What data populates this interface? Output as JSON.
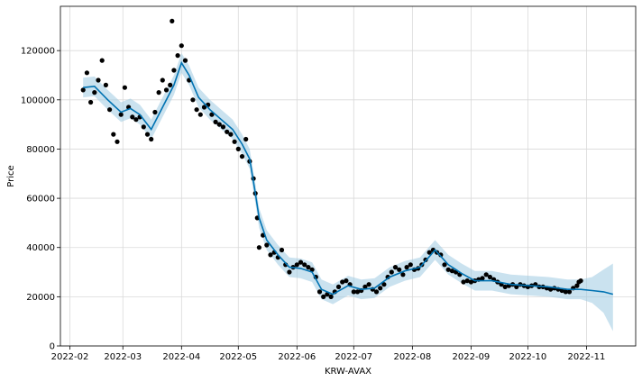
{
  "chart_data": {
    "type": "line",
    "title": "",
    "xlabel": "KRW-AVAX",
    "ylabel": "Price",
    "x_ticks": [
      "2022-02",
      "2022-03",
      "2022-04",
      "2022-05",
      "2022-06",
      "2022-07",
      "2022-08",
      "2022-09",
      "2022-10",
      "2022-11"
    ],
    "y_ticks": [
      0,
      20000,
      40000,
      60000,
      80000,
      100000,
      120000
    ],
    "xlim": [
      "2022-01-27",
      "2022-11-27"
    ],
    "ylim": [
      0,
      138000
    ],
    "grid": true,
    "legend": "none",
    "series": [
      {
        "role": "observed",
        "style": "black dots",
        "color": "#000000",
        "points": [
          [
            "2022-02-08",
            104000
          ],
          [
            "2022-02-10",
            111000
          ],
          [
            "2022-02-12",
            99000
          ],
          [
            "2022-02-14",
            103000
          ],
          [
            "2022-02-16",
            108000
          ],
          [
            "2022-02-18",
            116000
          ],
          [
            "2022-02-20",
            106000
          ],
          [
            "2022-02-22",
            96000
          ],
          [
            "2022-02-24",
            86000
          ],
          [
            "2022-02-26",
            83000
          ],
          [
            "2022-02-28",
            94000
          ],
          [
            "2022-03-02",
            105000
          ],
          [
            "2022-03-04",
            97000
          ],
          [
            "2022-03-06",
            93000
          ],
          [
            "2022-03-08",
            92000
          ],
          [
            "2022-03-10",
            93000
          ],
          [
            "2022-03-12",
            89000
          ],
          [
            "2022-03-14",
            86000
          ],
          [
            "2022-03-16",
            84000
          ],
          [
            "2022-03-18",
            95000
          ],
          [
            "2022-03-20",
            103000
          ],
          [
            "2022-03-22",
            108000
          ],
          [
            "2022-03-24",
            104000
          ],
          [
            "2022-03-26",
            106000
          ],
          [
            "2022-03-27",
            132000
          ],
          [
            "2022-03-28",
            112000
          ],
          [
            "2022-03-30",
            118000
          ],
          [
            "2022-04-01",
            122000
          ],
          [
            "2022-04-03",
            116000
          ],
          [
            "2022-04-05",
            108000
          ],
          [
            "2022-04-07",
            100000
          ],
          [
            "2022-04-09",
            96000
          ],
          [
            "2022-04-11",
            94000
          ],
          [
            "2022-04-13",
            97000
          ],
          [
            "2022-04-15",
            98000
          ],
          [
            "2022-04-17",
            94000
          ],
          [
            "2022-04-19",
            91000
          ],
          [
            "2022-04-21",
            90000
          ],
          [
            "2022-04-23",
            89000
          ],
          [
            "2022-04-25",
            87000
          ],
          [
            "2022-04-27",
            86000
          ],
          [
            "2022-04-29",
            83000
          ],
          [
            "2022-05-01",
            80000
          ],
          [
            "2022-05-03",
            77000
          ],
          [
            "2022-05-05",
            84000
          ],
          [
            "2022-05-07",
            75000
          ],
          [
            "2022-05-09",
            68000
          ],
          [
            "2022-05-10",
            62000
          ],
          [
            "2022-05-11",
            52000
          ],
          [
            "2022-05-12",
            40000
          ],
          [
            "2022-05-14",
            45000
          ],
          [
            "2022-05-16",
            41000
          ],
          [
            "2022-05-18",
            37000
          ],
          [
            "2022-05-20",
            38000
          ],
          [
            "2022-05-22",
            36000
          ],
          [
            "2022-05-24",
            39000
          ],
          [
            "2022-05-26",
            33000
          ],
          [
            "2022-05-28",
            30000
          ],
          [
            "2022-05-30",
            32000
          ],
          [
            "2022-06-01",
            33000
          ],
          [
            "2022-06-03",
            34000
          ],
          [
            "2022-06-05",
            33000
          ],
          [
            "2022-06-07",
            32000
          ],
          [
            "2022-06-09",
            31000
          ],
          [
            "2022-06-11",
            28000
          ],
          [
            "2022-06-13",
            22000
          ],
          [
            "2022-06-15",
            20000
          ],
          [
            "2022-06-17",
            21000
          ],
          [
            "2022-06-19",
            20000
          ],
          [
            "2022-06-21",
            22000
          ],
          [
            "2022-06-23",
            24000
          ],
          [
            "2022-06-25",
            26000
          ],
          [
            "2022-06-27",
            26500
          ],
          [
            "2022-06-29",
            25000
          ],
          [
            "2022-07-01",
            22000
          ],
          [
            "2022-07-03",
            22000
          ],
          [
            "2022-07-05",
            22500
          ],
          [
            "2022-07-07",
            24000
          ],
          [
            "2022-07-09",
            25000
          ],
          [
            "2022-07-11",
            23000
          ],
          [
            "2022-07-13",
            22000
          ],
          [
            "2022-07-15",
            23500
          ],
          [
            "2022-07-17",
            25000
          ],
          [
            "2022-07-19",
            28000
          ],
          [
            "2022-07-21",
            30000
          ],
          [
            "2022-07-23",
            32000
          ],
          [
            "2022-07-25",
            31000
          ],
          [
            "2022-07-27",
            29000
          ],
          [
            "2022-07-29",
            32000
          ],
          [
            "2022-07-31",
            33000
          ],
          [
            "2022-08-02",
            31000
          ],
          [
            "2022-08-04",
            31500
          ],
          [
            "2022-08-06",
            33000
          ],
          [
            "2022-08-08",
            35000
          ],
          [
            "2022-08-10",
            38000
          ],
          [
            "2022-08-12",
            39000
          ],
          [
            "2022-08-14",
            38000
          ],
          [
            "2022-08-16",
            37000
          ],
          [
            "2022-08-18",
            33000
          ],
          [
            "2022-08-20",
            31000
          ],
          [
            "2022-08-22",
            30500
          ],
          [
            "2022-08-24",
            30000
          ],
          [
            "2022-08-26",
            29000
          ],
          [
            "2022-08-28",
            26000
          ],
          [
            "2022-08-30",
            26500
          ],
          [
            "2022-09-01",
            26000
          ],
          [
            "2022-09-03",
            26500
          ],
          [
            "2022-09-05",
            27000
          ],
          [
            "2022-09-07",
            27500
          ],
          [
            "2022-09-09",
            29000
          ],
          [
            "2022-09-11",
            28000
          ],
          [
            "2022-09-13",
            27000
          ],
          [
            "2022-09-15",
            26000
          ],
          [
            "2022-09-17",
            25000
          ],
          [
            "2022-09-19",
            24000
          ],
          [
            "2022-09-21",
            24500
          ],
          [
            "2022-09-23",
            25000
          ],
          [
            "2022-09-25",
            24000
          ],
          [
            "2022-09-27",
            25000
          ],
          [
            "2022-09-29",
            24500
          ],
          [
            "2022-10-01",
            24000
          ],
          [
            "2022-10-03",
            24500
          ],
          [
            "2022-10-05",
            25000
          ],
          [
            "2022-10-07",
            24000
          ],
          [
            "2022-10-09",
            24000
          ],
          [
            "2022-10-11",
            23500
          ],
          [
            "2022-10-13",
            23000
          ],
          [
            "2022-10-15",
            23500
          ],
          [
            "2022-10-17",
            23000
          ],
          [
            "2022-10-19",
            22500
          ],
          [
            "2022-10-21",
            22000
          ],
          [
            "2022-10-23",
            22000
          ],
          [
            "2022-10-25",
            23500
          ],
          [
            "2022-10-27",
            24500
          ],
          [
            "2022-10-28",
            26000
          ],
          [
            "2022-10-29",
            26500
          ]
        ]
      },
      {
        "role": "forecast",
        "style": "blue line with light-blue uncertainty band",
        "color": "#0072B2",
        "band_color": "#9ECAE1",
        "points": [
          [
            "2022-02-08",
            105000,
            101000,
            109000
          ],
          [
            "2022-02-14",
            105500,
            101500,
            109500
          ],
          [
            "2022-02-21",
            100000,
            96000,
            104000
          ],
          [
            "2022-02-28",
            95000,
            91000,
            99000
          ],
          [
            "2022-03-05",
            96500,
            92500,
            100500
          ],
          [
            "2022-03-10",
            94000,
            90000,
            98000
          ],
          [
            "2022-03-16",
            88000,
            84000,
            92000
          ],
          [
            "2022-03-22",
            97000,
            93000,
            101000
          ],
          [
            "2022-03-28",
            106000,
            102000,
            110000
          ],
          [
            "2022-04-01",
            115000,
            111000,
            119000
          ],
          [
            "2022-04-05",
            110000,
            106000,
            114000
          ],
          [
            "2022-04-10",
            101000,
            97000,
            105000
          ],
          [
            "2022-04-16",
            96000,
            92000,
            100000
          ],
          [
            "2022-04-22",
            92000,
            88000,
            96000
          ],
          [
            "2022-04-28",
            88000,
            84000,
            92000
          ],
          [
            "2022-05-03",
            82000,
            78000,
            86000
          ],
          [
            "2022-05-07",
            76000,
            72000,
            80000
          ],
          [
            "2022-05-10",
            62000,
            58000,
            66000
          ],
          [
            "2022-05-12",
            52000,
            48000,
            56000
          ],
          [
            "2022-05-16",
            43000,
            39000,
            47000
          ],
          [
            "2022-05-22",
            37000,
            33000,
            41000
          ],
          [
            "2022-05-28",
            32000,
            28000,
            36000
          ],
          [
            "2022-06-03",
            31500,
            27500,
            35500
          ],
          [
            "2022-06-09",
            30000,
            26000,
            34000
          ],
          [
            "2022-06-14",
            23000,
            19000,
            27000
          ],
          [
            "2022-06-20",
            21000,
            17000,
            25000
          ],
          [
            "2022-06-28",
            24500,
            20500,
            28500
          ],
          [
            "2022-07-05",
            23000,
            19000,
            27000
          ],
          [
            "2022-07-12",
            23500,
            19500,
            27500
          ],
          [
            "2022-07-20",
            28000,
            24000,
            32000
          ],
          [
            "2022-07-28",
            30500,
            26500,
            34500
          ],
          [
            "2022-08-05",
            32000,
            28000,
            36000
          ],
          [
            "2022-08-13",
            39000,
            35000,
            43000
          ],
          [
            "2022-08-20",
            33000,
            29000,
            37000
          ],
          [
            "2022-08-27",
            29500,
            25500,
            33500
          ],
          [
            "2022-09-03",
            26500,
            22500,
            30500
          ],
          [
            "2022-09-12",
            26500,
            22500,
            30500
          ],
          [
            "2022-09-22",
            25000,
            21000,
            29000
          ],
          [
            "2022-10-02",
            24500,
            20500,
            28500
          ],
          [
            "2022-10-12",
            24000,
            20000,
            28000
          ],
          [
            "2022-10-22",
            23000,
            19000,
            27000
          ],
          [
            "2022-10-29",
            23000,
            19000,
            27000
          ],
          [
            "2022-11-04",
            22500,
            17500,
            28000
          ],
          [
            "2022-11-10",
            22000,
            13500,
            31000
          ],
          [
            "2022-11-15",
            21000,
            6000,
            33500
          ]
        ]
      }
    ]
  }
}
